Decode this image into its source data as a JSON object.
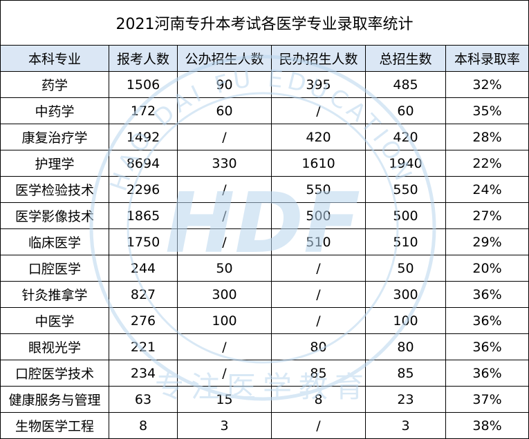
{
  "title": "2021河南专升本考试各医学专业录取率统计",
  "headers": [
    "本科专业",
    "报考人数",
    "公办招生人数",
    "民办招生人数",
    "总招生数",
    "本科录取率"
  ],
  "rows": [
    [
      "药学",
      "1506",
      "90",
      "395",
      "485",
      "32%"
    ],
    [
      "中药学",
      "172",
      "60",
      "/",
      "60",
      "35%"
    ],
    [
      "康复治疗学",
      "1492",
      "/",
      "420",
      "420",
      "28%"
    ],
    [
      "护理学",
      "8694",
      "330",
      "1610",
      "1940",
      "22%"
    ],
    [
      "医学检验技术",
      "2296",
      "/",
      "550",
      "550",
      "24%"
    ],
    [
      "医学影像技术",
      "1865",
      "/",
      "500",
      "500",
      "27%"
    ],
    [
      "临床医学",
      "1750",
      "/",
      "510",
      "510",
      "29%"
    ],
    [
      "口腔医学",
      "244",
      "50",
      "/",
      "50",
      "20%"
    ],
    [
      "针灸推拿学",
      "827",
      "300",
      "/",
      "300",
      "36%"
    ],
    [
      "中医学",
      "276",
      "100",
      "/",
      "100",
      "36%"
    ],
    [
      "眼视光学",
      "221",
      "/",
      "80",
      "80",
      "36%"
    ],
    [
      "口腔医学技术",
      "234",
      "/",
      "85",
      "85",
      "36%"
    ],
    [
      "健康服务与管理",
      "63",
      "15",
      "8",
      "23",
      "37%"
    ],
    [
      "生物医学工程",
      "8",
      "3",
      "/",
      "3",
      "38%"
    ]
  ],
  "watermark": {
    "logo": "HDF",
    "ring_text": "HAO DAI FU EDUCATION",
    "bottom_text": "专注医学教育",
    "color": "#b9d6ee"
  }
}
